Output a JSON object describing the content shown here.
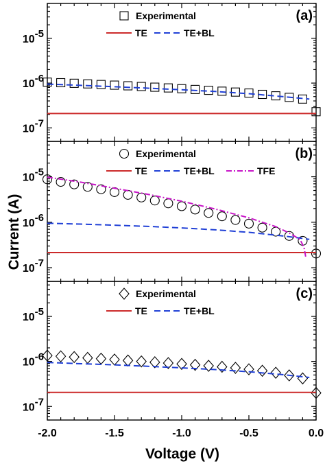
{
  "chart_data": {
    "type": "scatter",
    "x_axis": {
      "label": "Voltage (V)",
      "range": [
        -2.0,
        0.0
      ],
      "ticks": [
        -2.0,
        -1.5,
        -1.0,
        -0.5,
        0.0
      ],
      "tick_labels": [
        "-2.0",
        "-1.5",
        "-1.0",
        "-0.5",
        "0.0"
      ]
    },
    "y_axis": {
      "label": "Current (A)",
      "scale": "log",
      "range": [
        5e-08,
        6e-05
      ],
      "tick_labels": [
        {
          "base": "10",
          "exp": "-7",
          "value": 1e-07
        },
        {
          "base": "10",
          "exp": "-6",
          "value": 1e-06
        },
        {
          "base": "10",
          "exp": "-5",
          "value": 1e-05
        }
      ]
    },
    "panels": [
      {
        "tag": "(a)",
        "legend_row1": [
          "Experimental"
        ],
        "legend_row2": [
          "TE",
          "TE+BL"
        ],
        "experimental_marker": "square",
        "series": [
          {
            "name": "Experimental",
            "style": "markers",
            "color": "#000000",
            "x": [
              -2.0,
              -1.9,
              -1.8,
              -1.7,
              -1.6,
              -1.5,
              -1.4,
              -1.3,
              -1.2,
              -1.1,
              -1.0,
              -0.9,
              -0.8,
              -0.7,
              -0.6,
              -0.5,
              -0.4,
              -0.3,
              -0.2,
              -0.1,
              0.0
            ],
            "y": [
              1.05e-06,
              1.02e-06,
              9.9e-07,
              9.6e-07,
              9.3e-07,
              9e-07,
              8.7e-07,
              8.4e-07,
              8.1e-07,
              7.8e-07,
              7.5e-07,
              7.2e-07,
              6.9e-07,
              6.6e-07,
              6.3e-07,
              6e-07,
              5.6e-07,
              5.2e-07,
              4.8e-07,
              4.4e-07,
              2.3e-07
            ]
          },
          {
            "name": "TE",
            "style": "solid",
            "color": "#cc2a2a",
            "x": [
              -2.0,
              0.0
            ],
            "y": [
              2.1e-07,
              2.1e-07
            ]
          },
          {
            "name": "TE+BL",
            "style": "dashed",
            "color": "#1f3fd6",
            "x": [
              -2.0,
              -1.75,
              -1.5,
              -1.25,
              -1.0,
              -0.75,
              -0.5,
              -0.25,
              -0.05
            ],
            "y": [
              9.5e-07,
              8.9e-07,
              8.3e-07,
              7.7e-07,
              7.1e-07,
              6.5e-07,
              5.8e-07,
              5e-07,
              4.4e-07
            ]
          }
        ]
      },
      {
        "tag": "(b)",
        "legend_row1": [
          "Experimental"
        ],
        "legend_row2": [
          "TE",
          "TE+BL",
          "TFE"
        ],
        "experimental_marker": "circle",
        "series": [
          {
            "name": "Experimental",
            "style": "markers",
            "color": "#000000",
            "x": [
              -2.0,
              -1.9,
              -1.8,
              -1.7,
              -1.6,
              -1.5,
              -1.4,
              -1.3,
              -1.2,
              -1.1,
              -1.0,
              -0.9,
              -0.8,
              -0.7,
              -0.6,
              -0.5,
              -0.4,
              -0.3,
              -0.2,
              -0.1,
              0.0
            ],
            "y": [
              8.8e-06,
              7.7e-06,
              6.8e-06,
              6e-06,
              5.3e-06,
              4.6e-06,
              4e-06,
              3.5e-06,
              3e-06,
              2.6e-06,
              2.25e-06,
              1.9e-06,
              1.6e-06,
              1.35e-06,
              1.12e-06,
              9.3e-07,
              7.6e-07,
              6.2e-07,
              5e-07,
              3.9e-07,
              2.05e-07
            ]
          },
          {
            "name": "TE",
            "style": "solid",
            "color": "#cc2a2a",
            "x": [
              -2.0,
              0.0
            ],
            "y": [
              2.15e-07,
              2.15e-07
            ]
          },
          {
            "name": "TE+BL",
            "style": "dashed",
            "color": "#1f3fd6",
            "x": [
              -2.0,
              -1.75,
              -1.5,
              -1.25,
              -1.0,
              -0.75,
              -0.5,
              -0.25,
              -0.1,
              -0.05
            ],
            "y": [
              9.5e-07,
              9.1e-07,
              8.6e-07,
              8.1e-07,
              7.5e-07,
              6.8e-07,
              6e-07,
              5e-07,
              4.4e-07,
              4.2e-07
            ]
          },
          {
            "name": "TFE",
            "style": "dashdot",
            "color": "#c815c8",
            "x": [
              -2.0,
              -1.75,
              -1.5,
              -1.25,
              -1.0,
              -0.75,
              -0.5,
              -0.3,
              -0.2,
              -0.12,
              -0.09,
              -0.075
            ],
            "y": [
              9.8e-06,
              7.6e-06,
              5.6e-06,
              4.1e-06,
              2.9e-06,
              1.95e-06,
              1.25e-06,
              8e-07,
              5.8e-07,
              4.2e-07,
              2.8e-07,
              1.6e-07
            ]
          }
        ]
      },
      {
        "tag": "(c)",
        "legend_row1": [
          "Experimental"
        ],
        "legend_row2": [
          "TE",
          "TE+BL"
        ],
        "experimental_marker": "diamond",
        "series": [
          {
            "name": "Experimental",
            "style": "markers",
            "color": "#000000",
            "x": [
              -2.0,
              -1.9,
              -1.8,
              -1.7,
              -1.6,
              -1.5,
              -1.4,
              -1.3,
              -1.2,
              -1.1,
              -1.0,
              -0.9,
              -0.8,
              -0.7,
              -0.6,
              -0.5,
              -0.4,
              -0.3,
              -0.2,
              -0.1,
              0.0
            ],
            "y": [
              1.35e-06,
              1.3e-06,
              1.25e-06,
              1.2e-06,
              1.15e-06,
              1.1e-06,
              1.05e-06,
              1e-06,
              9.6e-07,
              9.2e-07,
              8.8e-07,
              8.4e-07,
              8e-07,
              7.6e-07,
              7.2e-07,
              6.7e-07,
              6.2e-07,
              5.6e-07,
              4.9e-07,
              4.2e-07,
              2e-07
            ]
          },
          {
            "name": "TE",
            "style": "solid",
            "color": "#cc2a2a",
            "x": [
              -2.0,
              0.0
            ],
            "y": [
              2.05e-07,
              2.05e-07
            ]
          },
          {
            "name": "TE+BL",
            "style": "dashed",
            "color": "#1f3fd6",
            "x": [
              -2.0,
              -1.75,
              -1.5,
              -1.25,
              -1.0,
              -0.75,
              -0.5,
              -0.25,
              -0.05
            ],
            "y": [
              9.5e-07,
              8.9e-07,
              8.4e-07,
              7.8e-07,
              7.2e-07,
              6.6e-07,
              5.9e-07,
              5.1e-07,
              4.4e-07
            ]
          }
        ]
      }
    ]
  }
}
